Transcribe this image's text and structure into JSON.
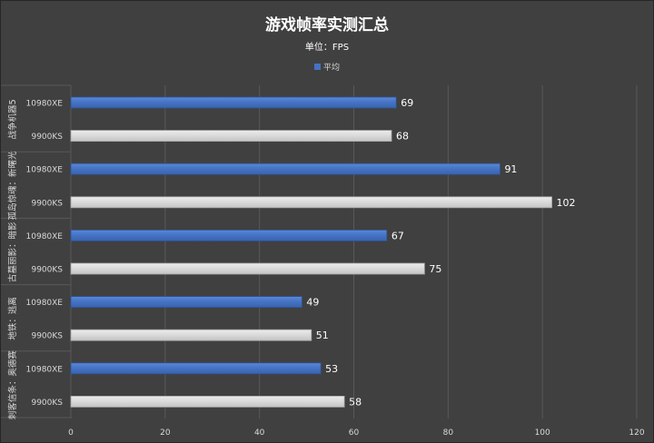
{
  "chart_data": {
    "type": "bar",
    "orientation": "horizontal",
    "title": "游戏帧率实测汇总",
    "subtitle": "单位：FPS",
    "legend": {
      "label": "平均",
      "position": "top"
    },
    "groups": [
      {
        "name": "战争机器5",
        "rows": [
          {
            "cpu": "10980XE",
            "value": 69
          },
          {
            "cpu": "9900KS",
            "value": 68
          }
        ]
      },
      {
        "name": "孤岛惊魂：新曙光",
        "rows": [
          {
            "cpu": "10980XE",
            "value": 91
          },
          {
            "cpu": "9900KS",
            "value": 102
          }
        ]
      },
      {
        "name": "古墓丽影：暗影",
        "rows": [
          {
            "cpu": "10980XE",
            "value": 67
          },
          {
            "cpu": "9900KS",
            "value": 75
          }
        ]
      },
      {
        "name": "地铁：逃离",
        "rows": [
          {
            "cpu": "10980XE",
            "value": 49
          },
          {
            "cpu": "9900KS",
            "value": 51
          }
        ]
      },
      {
        "name": "刺客信条：奥德赛",
        "rows": [
          {
            "cpu": "10980XE",
            "value": 53
          },
          {
            "cpu": "9900KS",
            "value": 58
          }
        ]
      }
    ],
    "xlim": [
      0,
      120
    ],
    "xticks": [
      0,
      20,
      40,
      60,
      80,
      100,
      120
    ],
    "grid": "vertical",
    "colors": {
      "background": "#404040",
      "bar_10980XE": "#4472C4",
      "bar_9900KS": "#D9D9D9",
      "text": "#ffffff",
      "axis_text": "#d9d9d9",
      "grid": "#595959"
    }
  }
}
